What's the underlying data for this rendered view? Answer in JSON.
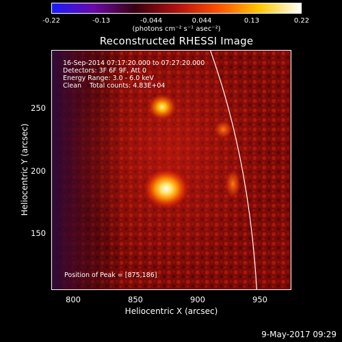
{
  "colorbar": {
    "tick_labels": [
      "-0.22",
      "-0.13",
      "-0.044",
      "0.044",
      "0.13",
      "0.22"
    ],
    "units_label": "(photons cm⁻² s⁻¹ asec⁻²)",
    "range": [
      -0.22,
      0.22
    ],
    "colors": [
      "#1a1aff",
      "#6a0aa8",
      "#3a0010",
      "#b01010",
      "#ff5000",
      "#ffc800",
      "#ffffff"
    ]
  },
  "title": "Reconstructed RHESSI Image",
  "annotations": {
    "time_range": "16-Sep-2014 07:17:20.000 to 07:27:20.000",
    "detectors": "Detectors: 3F 6F 9F, Att 0",
    "energy_range": "Energy Range: 3.0 - 6.0 keV",
    "clean_counts": "Clean    Total counts: 4.83E+04",
    "peak_position": "Position of Peak = [875,186]"
  },
  "axes": {
    "xlabel": "Heliocentric X (arcsec)",
    "ylabel": "Heliocentric Y (arcsec)",
    "x_ticks": [
      "800",
      "850",
      "900",
      "950"
    ],
    "y_ticks": [
      "250",
      "200",
      "150"
    ],
    "xlim": [
      783,
      975
    ],
    "ylim": [
      103,
      295
    ]
  },
  "footer": {
    "date": "9-May-2017 09:29"
  }
}
